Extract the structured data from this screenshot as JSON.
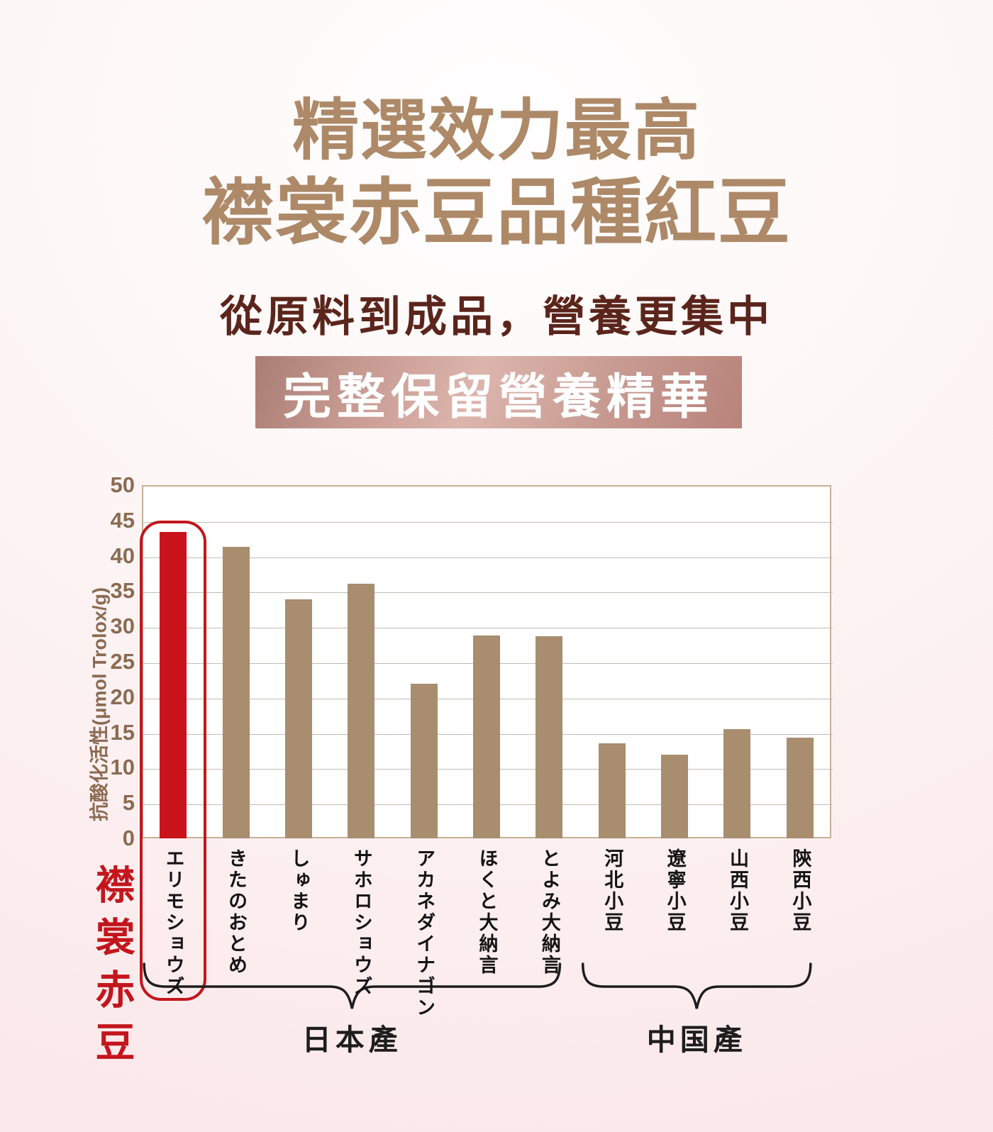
{
  "page": {
    "title_line1": "精選效力最高",
    "title_line2": "襟裳赤豆品種紅豆",
    "subtitle": "從原料到成品，營養更集中",
    "banner_text": "完整保留營養精華"
  },
  "colors": {
    "title": "#ad8968",
    "subtitle": "#5b251b",
    "banner_text": "#ffffff",
    "bar_default": "#a98d6f",
    "bar_highlight": "#c8141a",
    "highlight_outline": "#c3161c",
    "axis_text": "#8b6b51",
    "gridline": "#c3bcb2",
    "label_text": "#141414"
  },
  "chart_data": {
    "type": "bar",
    "title": "",
    "xlabel": "",
    "ylabel": "抗酸化活性(μmol Trolox/g)",
    "ylim": [
      0,
      50
    ],
    "ytick_step": 5,
    "grid": true,
    "legend_position": "none",
    "categories": [
      "エリモショウズ",
      "きたのおとめ",
      "しゅまり",
      "サホロショウズ",
      "アカネダイナゴン",
      "ほくと大納言",
      "とよみ大納言",
      "河北小豆",
      "遼寧小豆",
      "山西小豆",
      "陝西小豆"
    ],
    "values": [
      43.4,
      41.3,
      33.8,
      36.0,
      21.9,
      28.7,
      28.6,
      13.5,
      11.8,
      15.5,
      14.3
    ],
    "highlight_index": 0,
    "highlight_label": "襟裳赤豆",
    "groups": [
      {
        "label": "日本產",
        "from": 0,
        "to": 6
      },
      {
        "label": "中国產",
        "from": 7,
        "to": 10
      }
    ]
  }
}
